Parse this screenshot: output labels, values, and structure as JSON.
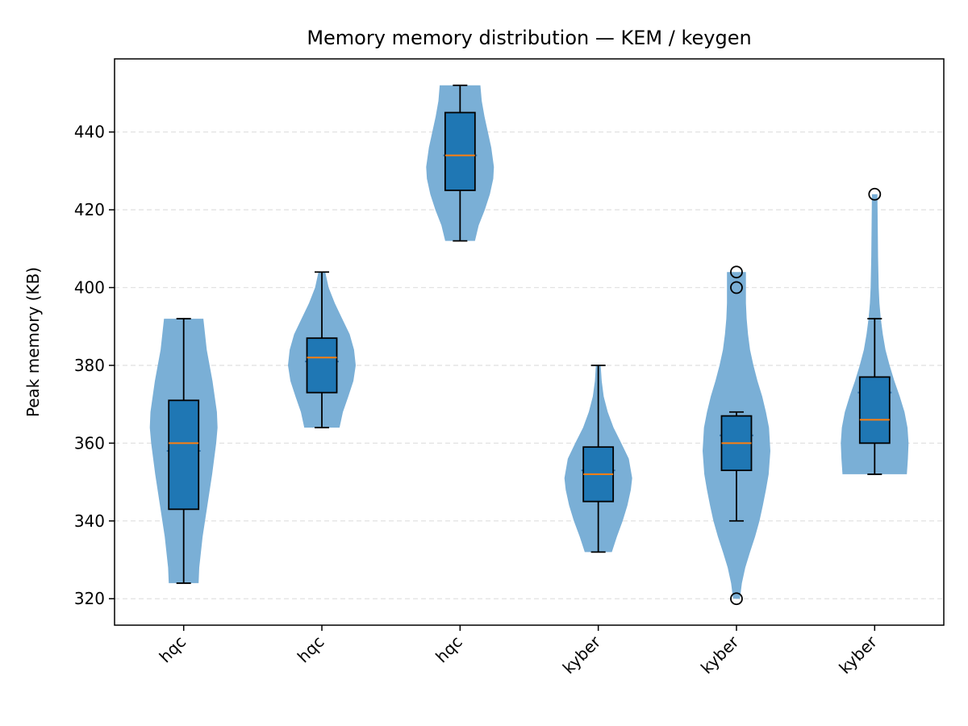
{
  "chart_data": {
    "type": "violin+box",
    "title": "Memory memory distribution — KEM / keygen",
    "ylabel": "Peak memory (KB)",
    "xlabel": "",
    "ylim": [
      313.2,
      458.8
    ],
    "yticks": [
      320,
      340,
      360,
      380,
      400,
      420,
      440
    ],
    "grid": "y-dashed",
    "colors": {
      "violin": "#7aafd6",
      "box": "#1f77b4",
      "median": "#ff7f0e",
      "line": "#000000",
      "grid": "#e2e2e2"
    },
    "categories": [
      "hqc",
      "hqc",
      "hqc",
      "kyber",
      "kyber",
      "kyber"
    ],
    "series": [
      {
        "violin": {
          "min": 324,
          "max": 392,
          "mean": 358,
          "profile": [
            [
              324,
              0.44
            ],
            [
              328,
              0.46
            ],
            [
              336,
              0.56
            ],
            [
              344,
              0.7
            ],
            [
              352,
              0.84
            ],
            [
              360,
              0.96
            ],
            [
              364,
              1.0
            ],
            [
              368,
              0.98
            ],
            [
              376,
              0.85
            ],
            [
              384,
              0.68
            ],
            [
              392,
              0.58
            ]
          ]
        },
        "box": {
          "whisker_low": 324,
          "q1": 343,
          "median": 360,
          "q3": 371,
          "whisker_high": 392,
          "fliers": []
        }
      },
      {
        "violin": {
          "min": 364,
          "max": 404,
          "mean": 381,
          "profile": [
            [
              364,
              0.52
            ],
            [
              368,
              0.62
            ],
            [
              372,
              0.78
            ],
            [
              376,
              0.93
            ],
            [
              380,
              1.0
            ],
            [
              384,
              0.95
            ],
            [
              388,
              0.82
            ],
            [
              392,
              0.6
            ],
            [
              396,
              0.38
            ],
            [
              400,
              0.2
            ],
            [
              404,
              0.1
            ]
          ]
        },
        "box": {
          "whisker_low": 364,
          "q1": 373,
          "median": 382,
          "q3": 387,
          "whisker_high": 404,
          "fliers": []
        }
      },
      {
        "violin": {
          "min": 412,
          "max": 452,
          "mean": 434,
          "profile": [
            [
              412,
              0.44
            ],
            [
              416,
              0.55
            ],
            [
              420,
              0.73
            ],
            [
              424,
              0.88
            ],
            [
              428,
              0.98
            ],
            [
              431,
              1.0
            ],
            [
              436,
              0.92
            ],
            [
              440,
              0.82
            ],
            [
              444,
              0.72
            ],
            [
              448,
              0.64
            ],
            [
              452,
              0.6
            ]
          ]
        },
        "box": {
          "whisker_low": 412,
          "q1": 425,
          "median": 434,
          "q3": 445,
          "whisker_high": 452,
          "fliers": []
        }
      },
      {
        "violin": {
          "min": 332,
          "max": 380,
          "mean": 353,
          "profile": [
            [
              332,
              0.4
            ],
            [
              336,
              0.55
            ],
            [
              340,
              0.72
            ],
            [
              344,
              0.86
            ],
            [
              348,
              0.96
            ],
            [
              351,
              1.0
            ],
            [
              356,
              0.9
            ],
            [
              360,
              0.68
            ],
            [
              364,
              0.45
            ],
            [
              368,
              0.28
            ],
            [
              372,
              0.16
            ],
            [
              376,
              0.1
            ],
            [
              380,
              0.07
            ]
          ]
        },
        "box": {
          "whisker_low": 332,
          "q1": 345,
          "median": 352,
          "q3": 359,
          "whisker_high": 380,
          "fliers": []
        }
      },
      {
        "violin": {
          "min": 320,
          "max": 404,
          "mean": 362,
          "profile": [
            [
              320,
              0.1
            ],
            [
              324,
              0.16
            ],
            [
              328,
              0.26
            ],
            [
              332,
              0.4
            ],
            [
              336,
              0.55
            ],
            [
              340,
              0.68
            ],
            [
              344,
              0.78
            ],
            [
              348,
              0.87
            ],
            [
              352,
              0.95
            ],
            [
              358,
              1.0
            ],
            [
              364,
              0.96
            ],
            [
              368,
              0.87
            ],
            [
              372,
              0.76
            ],
            [
              376,
              0.62
            ],
            [
              380,
              0.5
            ],
            [
              384,
              0.4
            ],
            [
              388,
              0.34
            ],
            [
              392,
              0.3
            ],
            [
              396,
              0.28
            ],
            [
              400,
              0.28
            ],
            [
              404,
              0.28
            ]
          ]
        },
        "box": {
          "whisker_low": 340,
          "q1": 353,
          "median": 360,
          "q3": 367,
          "whisker_high": 368,
          "fliers": [
            320,
            400,
            404
          ]
        }
      },
      {
        "violin": {
          "min": 352,
          "max": 424,
          "mean": 373,
          "profile": [
            [
              352,
              0.95
            ],
            [
              356,
              0.98
            ],
            [
              360,
              1.0
            ],
            [
              364,
              0.97
            ],
            [
              368,
              0.88
            ],
            [
              372,
              0.74
            ],
            [
              376,
              0.58
            ],
            [
              380,
              0.44
            ],
            [
              384,
              0.32
            ],
            [
              388,
              0.24
            ],
            [
              392,
              0.18
            ],
            [
              396,
              0.14
            ],
            [
              400,
              0.12
            ],
            [
              408,
              0.1
            ],
            [
              416,
              0.09
            ],
            [
              424,
              0.08
            ]
          ]
        },
        "box": {
          "whisker_low": 352,
          "q1": 360,
          "median": 366,
          "q3": 377,
          "whisker_high": 392,
          "fliers": [
            424
          ]
        }
      }
    ]
  }
}
